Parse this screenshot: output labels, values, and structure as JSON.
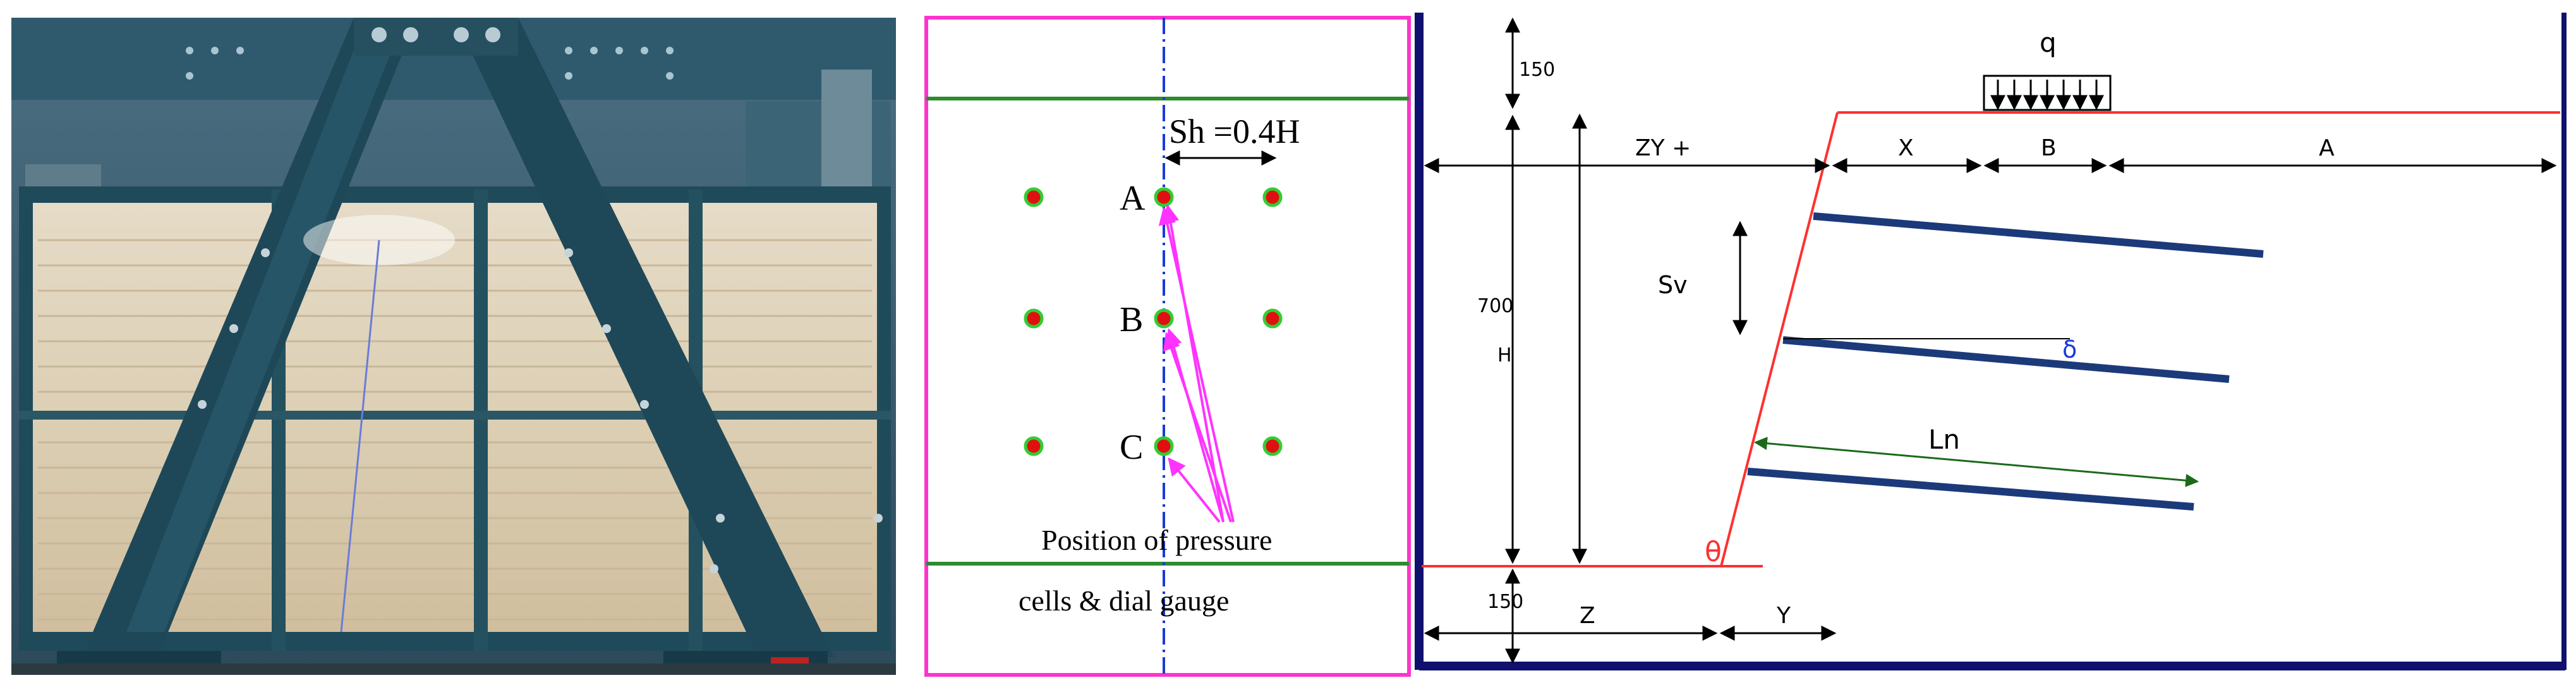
{
  "photo": {
    "description_icon": "test-frame-photo"
  },
  "plan_view": {
    "spacing_label": "Sh =0.4H",
    "points": [
      "A",
      "B",
      "C"
    ],
    "caption_line1": "Position of  pressure",
    "caption_line2": "cells  &  dial gauge"
  },
  "section_view": {
    "load_label": "q",
    "top_dim": "150",
    "height_value": "700",
    "height_label": "H",
    "bottom_dim": "150",
    "zy_label": "ZY +",
    "x_label": "X",
    "b_label": "B",
    "a_label": "A",
    "sv_label": "Sv",
    "delta_label": "δ",
    "ln_label": "Ln",
    "theta_label": "θ",
    "z_label": "Z",
    "y_label": "Y"
  },
  "colors": {
    "frame_steel": "#1f4a5a",
    "plan_border": "#ff33cc",
    "green_line": "#2e8b2e",
    "axis_blue": "#1a3ad6",
    "reinforcement": "#1c3a7a",
    "facing_red": "#ff3030",
    "arrow_magenta": "#ff33ff"
  }
}
